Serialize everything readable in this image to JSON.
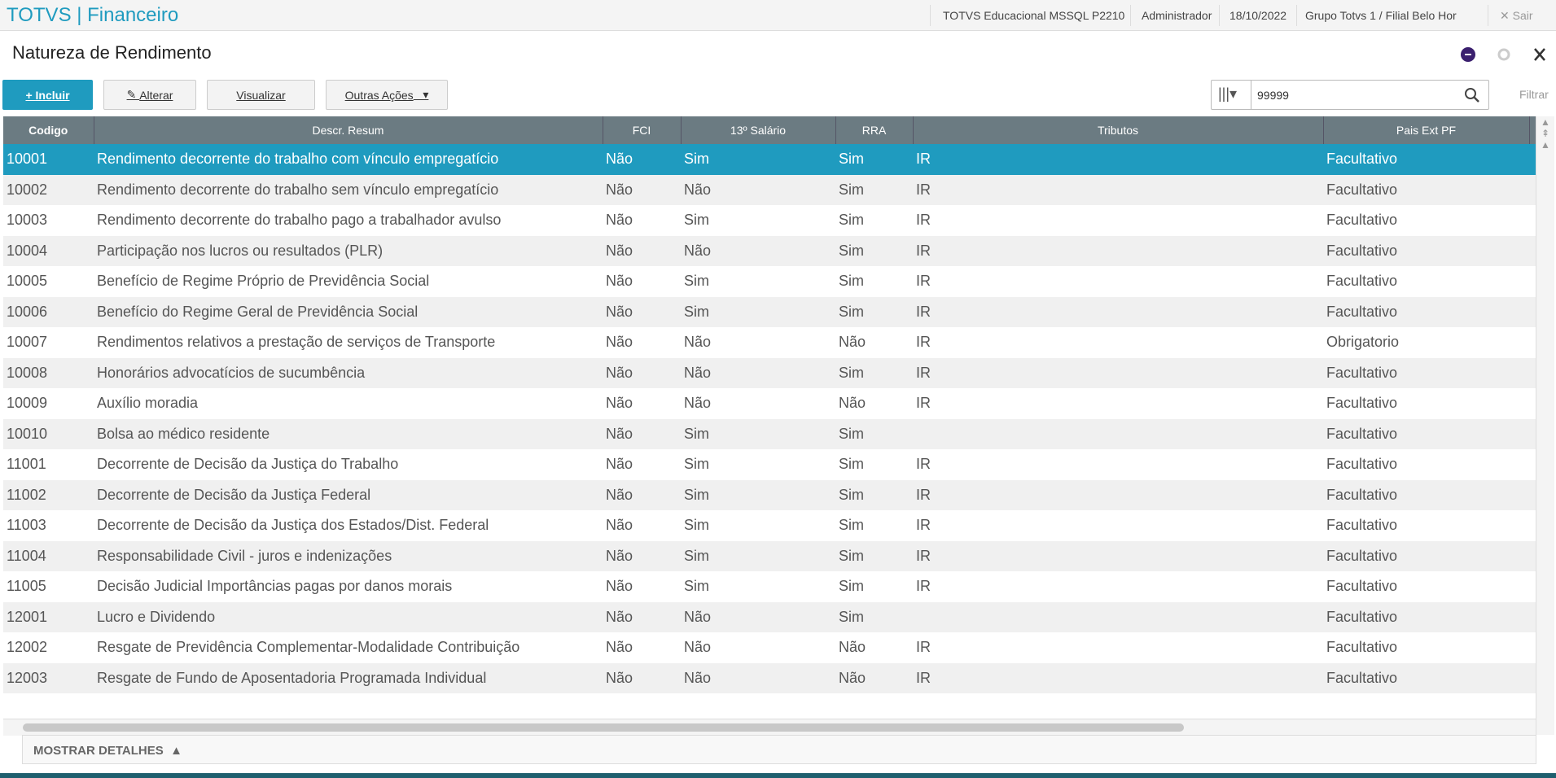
{
  "header": {
    "app": "TOTVS | Financeiro",
    "environment": "TOTVS Educacional MSSQL P2210",
    "user": "Administrador",
    "date": "18/10/2022",
    "branch": "Grupo Totvs 1 / Filial Belo Hor",
    "exit": "Sair"
  },
  "page": {
    "title": "Natureza de Rendimento"
  },
  "toolbar": {
    "buttons": [
      "Incluir",
      "Alterar",
      "Visualizar",
      "Outras Ações"
    ],
    "search": "99999",
    "filter": "Filtrar"
  },
  "table": {
    "columns": [
      "Codigo",
      "Descr. Resum",
      "FCI",
      "13º Salário",
      "RRA",
      "Tributos",
      "Pais Ext PF"
    ],
    "rows": [
      [
        "10001",
        "Rendimento decorrente do trabalho com vínculo empregatício",
        "Não",
        "Sim",
        "Sim",
        "IR",
        "Facultativo"
      ],
      [
        "10002",
        "Rendimento decorrente do trabalho sem vínculo empregatício",
        "Não",
        "Não",
        "Sim",
        "IR",
        "Facultativo"
      ],
      [
        "10003",
        "Rendimento decorrente do trabalho pago a trabalhador avulso",
        "Não",
        "Sim",
        "Sim",
        "IR",
        "Facultativo"
      ],
      [
        "10004",
        "Participação nos lucros ou resultados (PLR)",
        "Não",
        "Não",
        "Sim",
        "IR",
        "Facultativo"
      ],
      [
        "10005",
        "Benefício de Regime Próprio de Previdência Social",
        "Não",
        "Sim",
        "Sim",
        "IR",
        "Facultativo"
      ],
      [
        "10006",
        "Benefício do Regime Geral de Previdência Social",
        "Não",
        "Sim",
        "Sim",
        "IR",
        "Facultativo"
      ],
      [
        "10007",
        "Rendimentos relativos a prestação de serviços de Transporte",
        "Não",
        "Não",
        "Não",
        "IR",
        "Obrigatorio"
      ],
      [
        "10008",
        "Honorários advocatícios de sucumbência",
        "Não",
        "Não",
        "Sim",
        "IR",
        "Facultativo"
      ],
      [
        "10009",
        "Auxílio moradia",
        "Não",
        "Não",
        "Não",
        "IR",
        "Facultativo"
      ],
      [
        "10010",
        "Bolsa ao médico residente",
        "Não",
        "Sim",
        "Sim",
        null,
        "Facultativo"
      ],
      [
        "11001",
        "Decorrente de Decisão da Justiça do Trabalho",
        "Não",
        "Sim",
        "Sim",
        "IR",
        "Facultativo"
      ],
      [
        "11002",
        "Decorrente de Decisão da Justiça Federal",
        "Não",
        "Sim",
        "Sim",
        "IR",
        "Facultativo"
      ],
      [
        "11003",
        "Decorrente de Decisão da Justiça dos Estados/Dist. Federal",
        "Não",
        "Sim",
        "Sim",
        "IR",
        "Facultativo"
      ],
      [
        "11004",
        "Responsabilidade Civil - juros e indenizações",
        "Não",
        "Sim",
        "Sim",
        "IR",
        "Facultativo"
      ],
      [
        "11005",
        "Decisão Judicial Importâncias pagas por danos morais",
        "Não",
        "Sim",
        "Sim",
        "IR",
        "Facultativo"
      ],
      [
        "12001",
        "Lucro e Dividendo",
        "Não",
        "Não",
        "Sim",
        null,
        "Facultativo"
      ],
      [
        "12002",
        "Resgate de Previdência Complementar-Modalidade Contribuição",
        "Não",
        "Não",
        "Não",
        "IR",
        "Facultativo"
      ],
      [
        "12003",
        "Resgate de Fundo de Aposentadoria Programada Individual",
        "Não",
        "Não",
        "Não",
        "IR",
        "Facultativo"
      ]
    ]
  },
  "footer": {
    "details": "MOSTRAR DETALHES"
  }
}
